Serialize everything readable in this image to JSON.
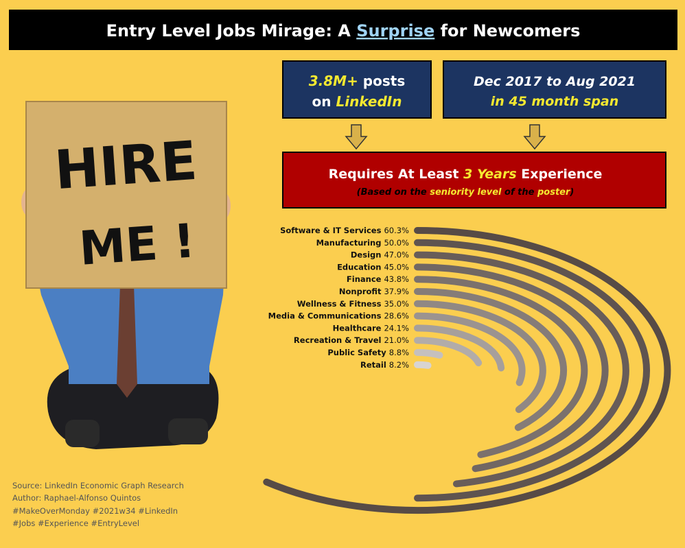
{
  "header": {
    "title_parts": [
      "Entry Level Jobs Mirage: A ",
      "Surprise",
      " for Newcomers"
    ]
  },
  "stat_boxes": [
    {
      "line1": [
        "3.8M+",
        " posts"
      ],
      "line2": [
        "on ",
        "LinkedIn"
      ]
    },
    {
      "line1": [
        "Dec 2017 to  Aug 2021"
      ],
      "line2": [
        "in 45 month span"
      ]
    }
  ],
  "requirement": {
    "line1": [
      "Requires At Least ",
      "3 Years",
      " Experience"
    ],
    "line2": [
      "(Based on the ",
      "seniority level",
      " of the ",
      "poster",
      ")"
    ]
  },
  "photo_sign": [
    "HIRE",
    "ME !"
  ],
  "footer": [
    "Source: LinkedIn Economic Graph Research",
    "Author: Raphael-Alfonso Quintos",
    "#MakeOverMonday #2021w34 #LinkedIn",
    "#Jobs #Experience #EntryLevel"
  ],
  "chart_data": {
    "type": "radial_bar",
    "categories": [
      "Software & IT Services",
      "Manufacturing",
      "Design",
      "Education",
      "Finance",
      "Nonprofit",
      "Wellness & Fitness",
      "Media & Communications",
      "Healthcare",
      "Recreation & Travel",
      "Public Safety",
      "Retail"
    ],
    "values": [
      60.3,
      50.0,
      47.0,
      45.0,
      43.8,
      37.9,
      35.0,
      28.6,
      24.1,
      21.0,
      8.8,
      8.2
    ],
    "value_labels": [
      "60.3%",
      "50.0%",
      "47.0%",
      "45.0%",
      "43.8%",
      "37.9%",
      "35.0%",
      "28.6%",
      "24.1%",
      "21.0%",
      "8.8%",
      "8.2%"
    ],
    "colors": [
      "#574b46",
      "#5f5450",
      "#685d59",
      "#716763",
      "#7b716d",
      "#857c78",
      "#908884",
      "#9b9390",
      "#a69f9c",
      "#b2aca9",
      "#c5c0be",
      "#d8d4d2"
    ]
  }
}
